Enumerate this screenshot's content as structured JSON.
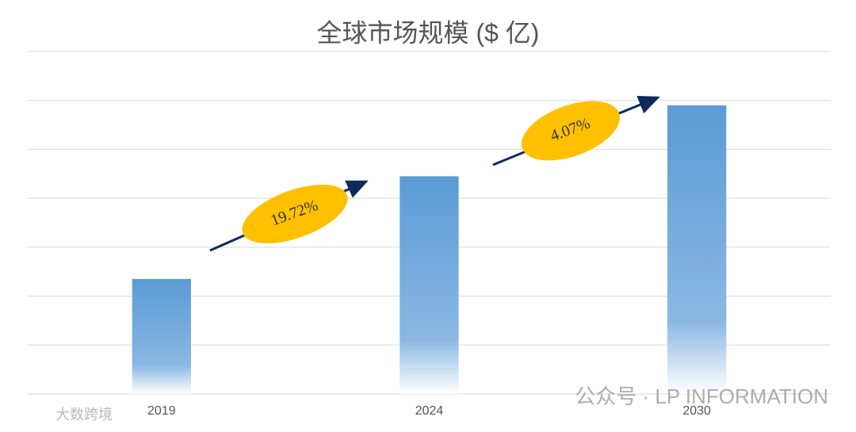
{
  "chart_data": {
    "type": "bar",
    "title": "全球市场规模 ($ 亿)",
    "categories": [
      "2019",
      "2024",
      "2030"
    ],
    "values": [
      2.35,
      4.45,
      5.9
    ],
    "color": "#5b9bd5",
    "ylim": [
      0,
      7
    ],
    "yticks": [
      0,
      1,
      2,
      3,
      4,
      5,
      6,
      7
    ],
    "grid": true,
    "annotations": [
      {
        "text": "19.72%"
      },
      {
        "text": "4.07%"
      }
    ]
  },
  "watermarks": [
    "公众号 · LP INFORMATION",
    "大数跨境"
  ]
}
